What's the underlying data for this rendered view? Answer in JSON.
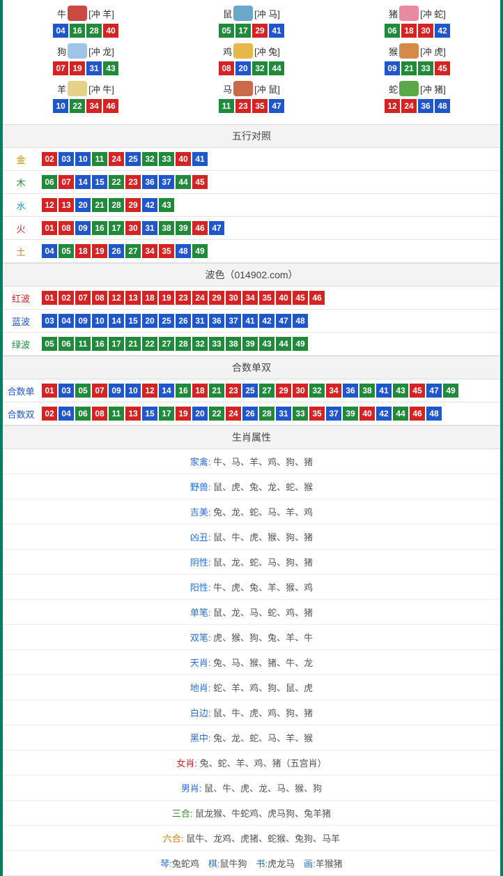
{
  "colors": {
    "red": "#d32323",
    "blue": "#1f56c9",
    "green": "#218a3a",
    "gold": "#c78a00",
    "brown": "#8a5a2a",
    "aqua": "#1a90c4",
    "fire": "#d02a2a",
    "earth": "#b48a3a"
  },
  "zodiac": [
    {
      "name": "牛",
      "clash": "[冲 羊]",
      "iconColor": "#c94a42",
      "nums": [
        [
          "04",
          "blue"
        ],
        [
          "16",
          "green"
        ],
        [
          "28",
          "green"
        ],
        [
          "40",
          "red"
        ]
      ]
    },
    {
      "name": "鼠",
      "clash": "[冲 马]",
      "iconColor": "#6aa8c9",
      "nums": [
        [
          "05",
          "green"
        ],
        [
          "17",
          "green"
        ],
        [
          "29",
          "red"
        ],
        [
          "41",
          "blue"
        ]
      ]
    },
    {
      "name": "猪",
      "clash": "[冲 蛇]",
      "iconColor": "#e88aa0",
      "nums": [
        [
          "06",
          "green"
        ],
        [
          "18",
          "red"
        ],
        [
          "30",
          "red"
        ],
        [
          "42",
          "blue"
        ]
      ]
    },
    {
      "name": "狗",
      "clash": "[冲 龙]",
      "iconColor": "#a0c4e6",
      "nums": [
        [
          "07",
          "red"
        ],
        [
          "19",
          "red"
        ],
        [
          "31",
          "blue"
        ],
        [
          "43",
          "green"
        ]
      ]
    },
    {
      "name": "鸡",
      "clash": "[冲 兔]",
      "iconColor": "#e6b84a",
      "nums": [
        [
          "08",
          "red"
        ],
        [
          "20",
          "blue"
        ],
        [
          "32",
          "green"
        ],
        [
          "44",
          "green"
        ]
      ]
    },
    {
      "name": "猴",
      "clash": "[冲 虎]",
      "iconColor": "#d68a4a",
      "nums": [
        [
          "09",
          "blue"
        ],
        [
          "21",
          "green"
        ],
        [
          "33",
          "green"
        ],
        [
          "45",
          "red"
        ]
      ]
    },
    {
      "name": "羊",
      "clash": "[冲 牛]",
      "iconColor": "#e6d08a",
      "nums": [
        [
          "10",
          "blue"
        ],
        [
          "22",
          "green"
        ],
        [
          "34",
          "red"
        ],
        [
          "46",
          "red"
        ]
      ]
    },
    {
      "name": "马",
      "clash": "[冲 鼠]",
      "iconColor": "#c96a4a",
      "nums": [
        [
          "11",
          "green"
        ],
        [
          "23",
          "red"
        ],
        [
          "35",
          "red"
        ],
        [
          "47",
          "blue"
        ]
      ]
    },
    {
      "name": "蛇",
      "clash": "[冲 猪]",
      "iconColor": "#5aa84a",
      "nums": [
        [
          "12",
          "red"
        ],
        [
          "24",
          "red"
        ],
        [
          "36",
          "blue"
        ],
        [
          "48",
          "blue"
        ]
      ]
    }
  ],
  "wuxing": {
    "title": "五行对照",
    "rows": [
      {
        "label": "金",
        "labelColor": "#c78a00",
        "nums": [
          [
            "02",
            "red"
          ],
          [
            "03",
            "blue"
          ],
          [
            "10",
            "blue"
          ],
          [
            "11",
            "green"
          ],
          [
            "24",
            "red"
          ],
          [
            "25",
            "blue"
          ],
          [
            "32",
            "green"
          ],
          [
            "33",
            "green"
          ],
          [
            "40",
            "red"
          ],
          [
            "41",
            "blue"
          ]
        ]
      },
      {
        "label": "木",
        "labelColor": "#218a3a",
        "nums": [
          [
            "06",
            "green"
          ],
          [
            "07",
            "red"
          ],
          [
            "14",
            "blue"
          ],
          [
            "15",
            "blue"
          ],
          [
            "22",
            "green"
          ],
          [
            "23",
            "red"
          ],
          [
            "36",
            "blue"
          ],
          [
            "37",
            "blue"
          ],
          [
            "44",
            "green"
          ],
          [
            "45",
            "red"
          ]
        ]
      },
      {
        "label": "水",
        "labelColor": "#1a90c4",
        "nums": [
          [
            "12",
            "red"
          ],
          [
            "13",
            "red"
          ],
          [
            "20",
            "blue"
          ],
          [
            "21",
            "green"
          ],
          [
            "28",
            "green"
          ],
          [
            "29",
            "red"
          ],
          [
            "42",
            "blue"
          ],
          [
            "43",
            "green"
          ]
        ]
      },
      {
        "label": "火",
        "labelColor": "#d02a2a",
        "nums": [
          [
            "01",
            "red"
          ],
          [
            "08",
            "red"
          ],
          [
            "09",
            "blue"
          ],
          [
            "16",
            "green"
          ],
          [
            "17",
            "green"
          ],
          [
            "30",
            "red"
          ],
          [
            "31",
            "blue"
          ],
          [
            "38",
            "green"
          ],
          [
            "39",
            "green"
          ],
          [
            "46",
            "red"
          ],
          [
            "47",
            "blue"
          ]
        ]
      },
      {
        "label": "土",
        "labelColor": "#b48a3a",
        "nums": [
          [
            "04",
            "blue"
          ],
          [
            "05",
            "green"
          ],
          [
            "18",
            "red"
          ],
          [
            "19",
            "red"
          ],
          [
            "26",
            "blue"
          ],
          [
            "27",
            "green"
          ],
          [
            "34",
            "red"
          ],
          [
            "35",
            "red"
          ],
          [
            "48",
            "blue"
          ],
          [
            "49",
            "green"
          ]
        ]
      }
    ]
  },
  "bose": {
    "title": "波色（014902.com）",
    "rows": [
      {
        "label": "红波",
        "labelColor": "#d32323",
        "nums": [
          [
            "01",
            "red"
          ],
          [
            "02",
            "red"
          ],
          [
            "07",
            "red"
          ],
          [
            "08",
            "red"
          ],
          [
            "12",
            "red"
          ],
          [
            "13",
            "red"
          ],
          [
            "18",
            "red"
          ],
          [
            "19",
            "red"
          ],
          [
            "23",
            "red"
          ],
          [
            "24",
            "red"
          ],
          [
            "29",
            "red"
          ],
          [
            "30",
            "red"
          ],
          [
            "34",
            "red"
          ],
          [
            "35",
            "red"
          ],
          [
            "40",
            "red"
          ],
          [
            "45",
            "red"
          ],
          [
            "46",
            "red"
          ]
        ]
      },
      {
        "label": "蓝波",
        "labelColor": "#1f56c9",
        "nums": [
          [
            "03",
            "blue"
          ],
          [
            "04",
            "blue"
          ],
          [
            "09",
            "blue"
          ],
          [
            "10",
            "blue"
          ],
          [
            "14",
            "blue"
          ],
          [
            "15",
            "blue"
          ],
          [
            "20",
            "blue"
          ],
          [
            "25",
            "blue"
          ],
          [
            "26",
            "blue"
          ],
          [
            "31",
            "blue"
          ],
          [
            "36",
            "blue"
          ],
          [
            "37",
            "blue"
          ],
          [
            "41",
            "blue"
          ],
          [
            "42",
            "blue"
          ],
          [
            "47",
            "blue"
          ],
          [
            "48",
            "blue"
          ]
        ]
      },
      {
        "label": "绿波",
        "labelColor": "#218a3a",
        "nums": [
          [
            "05",
            "green"
          ],
          [
            "06",
            "green"
          ],
          [
            "11",
            "green"
          ],
          [
            "16",
            "green"
          ],
          [
            "17",
            "green"
          ],
          [
            "21",
            "green"
          ],
          [
            "22",
            "green"
          ],
          [
            "27",
            "green"
          ],
          [
            "28",
            "green"
          ],
          [
            "32",
            "green"
          ],
          [
            "33",
            "green"
          ],
          [
            "38",
            "green"
          ],
          [
            "39",
            "green"
          ],
          [
            "43",
            "green"
          ],
          [
            "44",
            "green"
          ],
          [
            "49",
            "green"
          ]
        ]
      }
    ]
  },
  "heshu": {
    "title": "合数单双",
    "rows": [
      {
        "label": "合数单",
        "labelColor": "#1f56c9",
        "nums": [
          [
            "01",
            "red"
          ],
          [
            "03",
            "blue"
          ],
          [
            "05",
            "green"
          ],
          [
            "07",
            "red"
          ],
          [
            "09",
            "blue"
          ],
          [
            "10",
            "blue"
          ],
          [
            "12",
            "red"
          ],
          [
            "14",
            "blue"
          ],
          [
            "16",
            "green"
          ],
          [
            "18",
            "red"
          ],
          [
            "21",
            "green"
          ],
          [
            "23",
            "red"
          ],
          [
            "25",
            "blue"
          ],
          [
            "27",
            "green"
          ],
          [
            "29",
            "red"
          ],
          [
            "30",
            "red"
          ],
          [
            "32",
            "green"
          ],
          [
            "34",
            "red"
          ],
          [
            "36",
            "blue"
          ],
          [
            "38",
            "green"
          ],
          [
            "41",
            "blue"
          ],
          [
            "43",
            "green"
          ],
          [
            "45",
            "red"
          ],
          [
            "47",
            "blue"
          ],
          [
            "49",
            "green"
          ]
        ]
      },
      {
        "label": "合数双",
        "labelColor": "#1f56c9",
        "nums": [
          [
            "02",
            "red"
          ],
          [
            "04",
            "blue"
          ],
          [
            "06",
            "green"
          ],
          [
            "08",
            "red"
          ],
          [
            "11",
            "green"
          ],
          [
            "13",
            "red"
          ],
          [
            "15",
            "blue"
          ],
          [
            "17",
            "green"
          ],
          [
            "19",
            "red"
          ],
          [
            "20",
            "blue"
          ],
          [
            "22",
            "green"
          ],
          [
            "24",
            "red"
          ],
          [
            "26",
            "blue"
          ],
          [
            "28",
            "green"
          ],
          [
            "31",
            "blue"
          ],
          [
            "33",
            "green"
          ],
          [
            "35",
            "red"
          ],
          [
            "37",
            "blue"
          ],
          [
            "39",
            "green"
          ],
          [
            "40",
            "red"
          ],
          [
            "42",
            "blue"
          ],
          [
            "44",
            "green"
          ],
          [
            "46",
            "red"
          ],
          [
            "48",
            "blue"
          ]
        ]
      }
    ]
  },
  "shuxing": {
    "title": "生肖属性",
    "rows": [
      {
        "label": "家禽",
        "cls": "blue",
        "val": "牛、马、羊、鸡、狗、猪"
      },
      {
        "label": "野兽",
        "cls": "blue",
        "val": "鼠、虎、兔、龙、蛇、猴"
      },
      {
        "label": "吉美",
        "cls": "blue",
        "val": "兔、龙、蛇、马、羊、鸡"
      },
      {
        "label": "凶丑",
        "cls": "blue",
        "val": "鼠、牛、虎、猴、狗、猪"
      },
      {
        "label": "阴性",
        "cls": "blue",
        "val": "鼠、龙、蛇、马、狗、猪"
      },
      {
        "label": "阳性",
        "cls": "blue",
        "val": "牛、虎、兔、羊、猴、鸡"
      },
      {
        "label": "单笔",
        "cls": "blue",
        "val": "鼠、龙、马、蛇、鸡、猪"
      },
      {
        "label": "双笔",
        "cls": "blue",
        "val": "虎、猴、狗、兔、羊、牛"
      },
      {
        "label": "天肖",
        "cls": "blue",
        "val": "兔、马、猴、猪、牛、龙"
      },
      {
        "label": "地肖",
        "cls": "blue",
        "val": "蛇、羊、鸡、狗、鼠、虎"
      },
      {
        "label": "白边",
        "cls": "blue",
        "val": "鼠、牛、虎、鸡、狗、猪"
      },
      {
        "label": "黑中",
        "cls": "blue",
        "val": "兔、龙、蛇、马、羊、猴"
      },
      {
        "label": "女肖",
        "cls": "red",
        "val": "兔、蛇、羊、鸡、猪（五宫肖）"
      },
      {
        "label": "男肖",
        "cls": "blue",
        "val": "鼠、牛、虎、龙、马、猴、狗"
      },
      {
        "label": "三合",
        "cls": "green",
        "val": "鼠龙猴、牛蛇鸡、虎马狗、兔羊猪"
      },
      {
        "label": "六合",
        "cls": "orange",
        "val": "鼠牛、龙鸡、虎猪、蛇猴、兔狗、马羊"
      }
    ],
    "footer": [
      {
        "label": "琴",
        "val": "兔蛇鸡"
      },
      {
        "label": "棋",
        "val": "鼠牛狗"
      },
      {
        "label": "书",
        "val": "虎龙马"
      },
      {
        "label": "画",
        "val": "羊猴猪"
      }
    ]
  }
}
